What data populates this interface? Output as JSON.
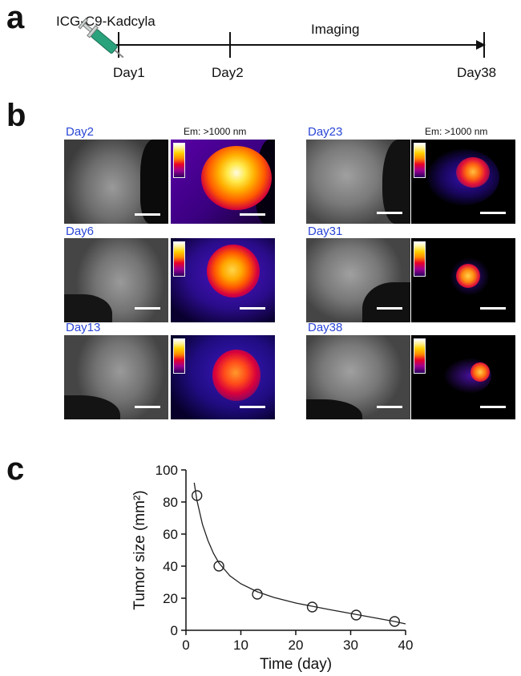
{
  "panels": {
    "a": "a",
    "b": "b",
    "c": "c"
  },
  "timeline": {
    "agent": "ICG-C9-Kadcyla",
    "imaging": "Imaging",
    "days": [
      "Day1",
      "Day2",
      "Day38"
    ]
  },
  "imaging": {
    "emission": "Em: >1000 nm",
    "days": [
      "Day2",
      "Day6",
      "Day13",
      "Day23",
      "Day31",
      "Day38"
    ]
  },
  "chart_data": {
    "type": "scatter",
    "xlabel": "Time (day)",
    "ylabel": "Tumor size (mm²)",
    "xlim": [
      0,
      40
    ],
    "ylim": [
      0,
      100
    ],
    "xticks": [
      0,
      10,
      20,
      30,
      40
    ],
    "yticks": [
      0,
      20,
      40,
      60,
      80,
      100
    ],
    "grid": false,
    "points": {
      "x": [
        2,
        6,
        13,
        23,
        31,
        38
      ],
      "y": [
        84,
        40,
        22.5,
        14.5,
        9.5,
        5.5
      ]
    },
    "fit": {
      "x": [
        1.5,
        2,
        3,
        4,
        5,
        6,
        8,
        10,
        13,
        16,
        20,
        23,
        26,
        30,
        34,
        38,
        40
      ],
      "y": [
        92,
        81,
        66,
        56,
        48,
        42,
        34,
        29,
        24,
        20.5,
        17,
        15,
        13,
        10.5,
        8,
        5.5,
        4
      ]
    }
  }
}
